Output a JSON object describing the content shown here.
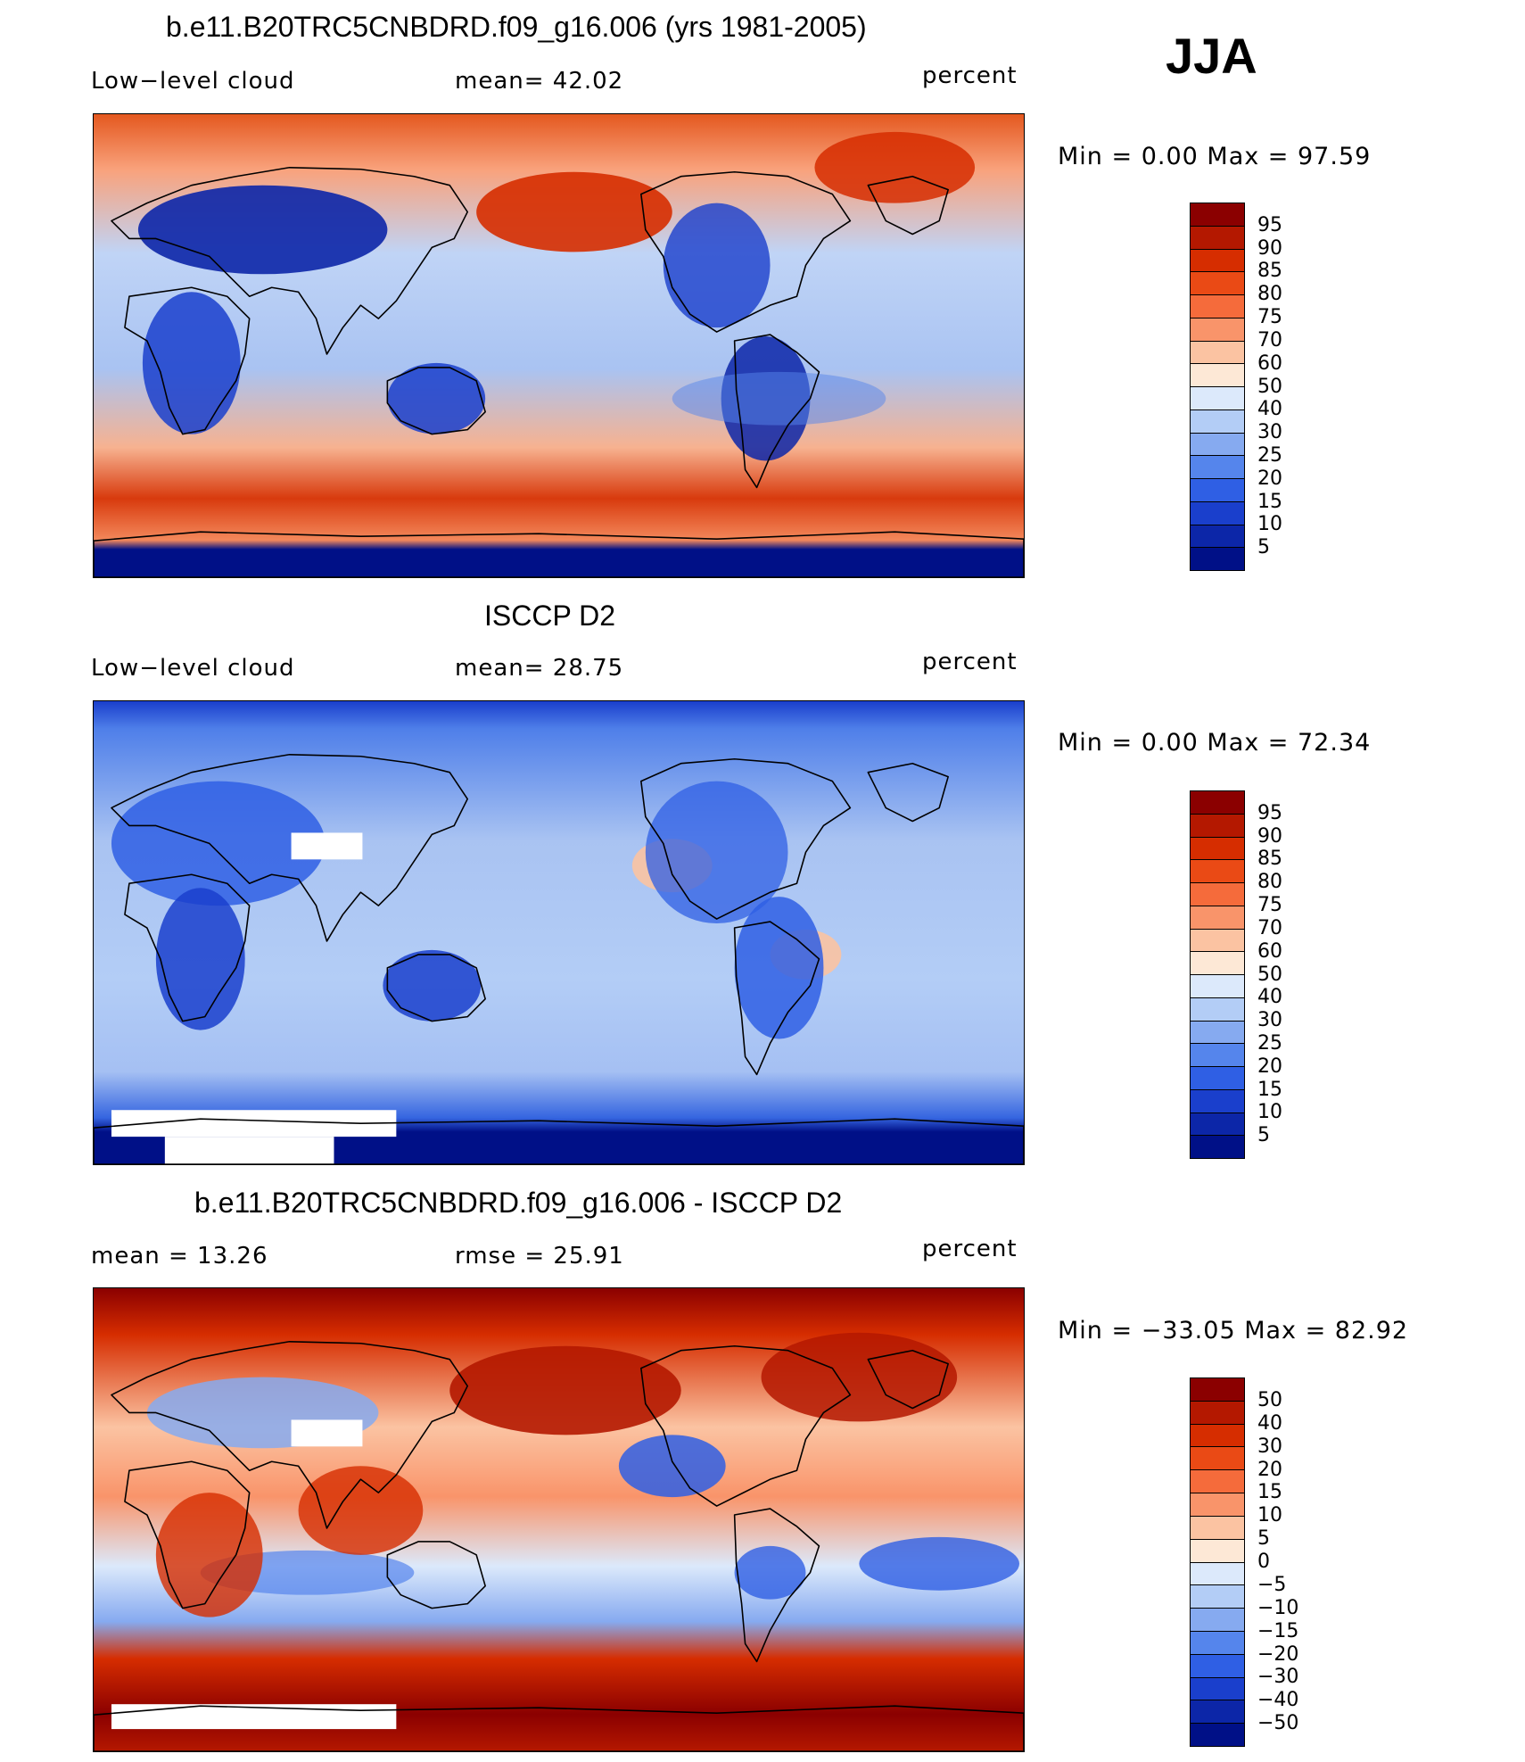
{
  "season": "JJA",
  "panels": [
    {
      "title": "b.e11.B20TRC5CNBDRD.f09_g16.006 (yrs 1981-2005)",
      "left_label": "Low−level cloud",
      "mid_label": "mean=   42.02",
      "units": "percent",
      "minmax": "Min =    0.00 Max =   97.59",
      "map_kind": "model"
    },
    {
      "title": "ISCCP D2",
      "left_label": "Low−level cloud",
      "mid_label": "mean=   28.75",
      "units": "percent",
      "minmax": "Min =    0.00 Max =   72.34",
      "map_kind": "obs"
    },
    {
      "title": "b.e11.B20TRC5CNBDRD.f09_g16.006 - ISCCP D2",
      "left_label": "mean =   13.26",
      "mid_label": "rmse =   25.91",
      "units": "percent",
      "minmax": "Min = −33.05 Max =   82.92",
      "map_kind": "diff"
    }
  ],
  "colorbars": {
    "abs_labels": [
      "95",
      "90",
      "85",
      "80",
      "75",
      "70",
      "60",
      "50",
      "40",
      "30",
      "25",
      "20",
      "15",
      "10",
      "5"
    ],
    "diff_labels": [
      "50",
      "40",
      "30",
      "20",
      "15",
      "10",
      "5",
      "0",
      "−5",
      "−10",
      "−15",
      "−20",
      "−30",
      "−40",
      "−50"
    ],
    "colors": [
      "#8b0000",
      "#b41800",
      "#d62d00",
      "#ea4a15",
      "#f56b3b",
      "#f9946a",
      "#fbc3a2",
      "#fde8d6",
      "#dce9fb",
      "#b3cdf6",
      "#86aaf0",
      "#5585ec",
      "#2f5fe4",
      "#1a3fcc",
      "#0c26a8",
      "#001087"
    ]
  }
}
